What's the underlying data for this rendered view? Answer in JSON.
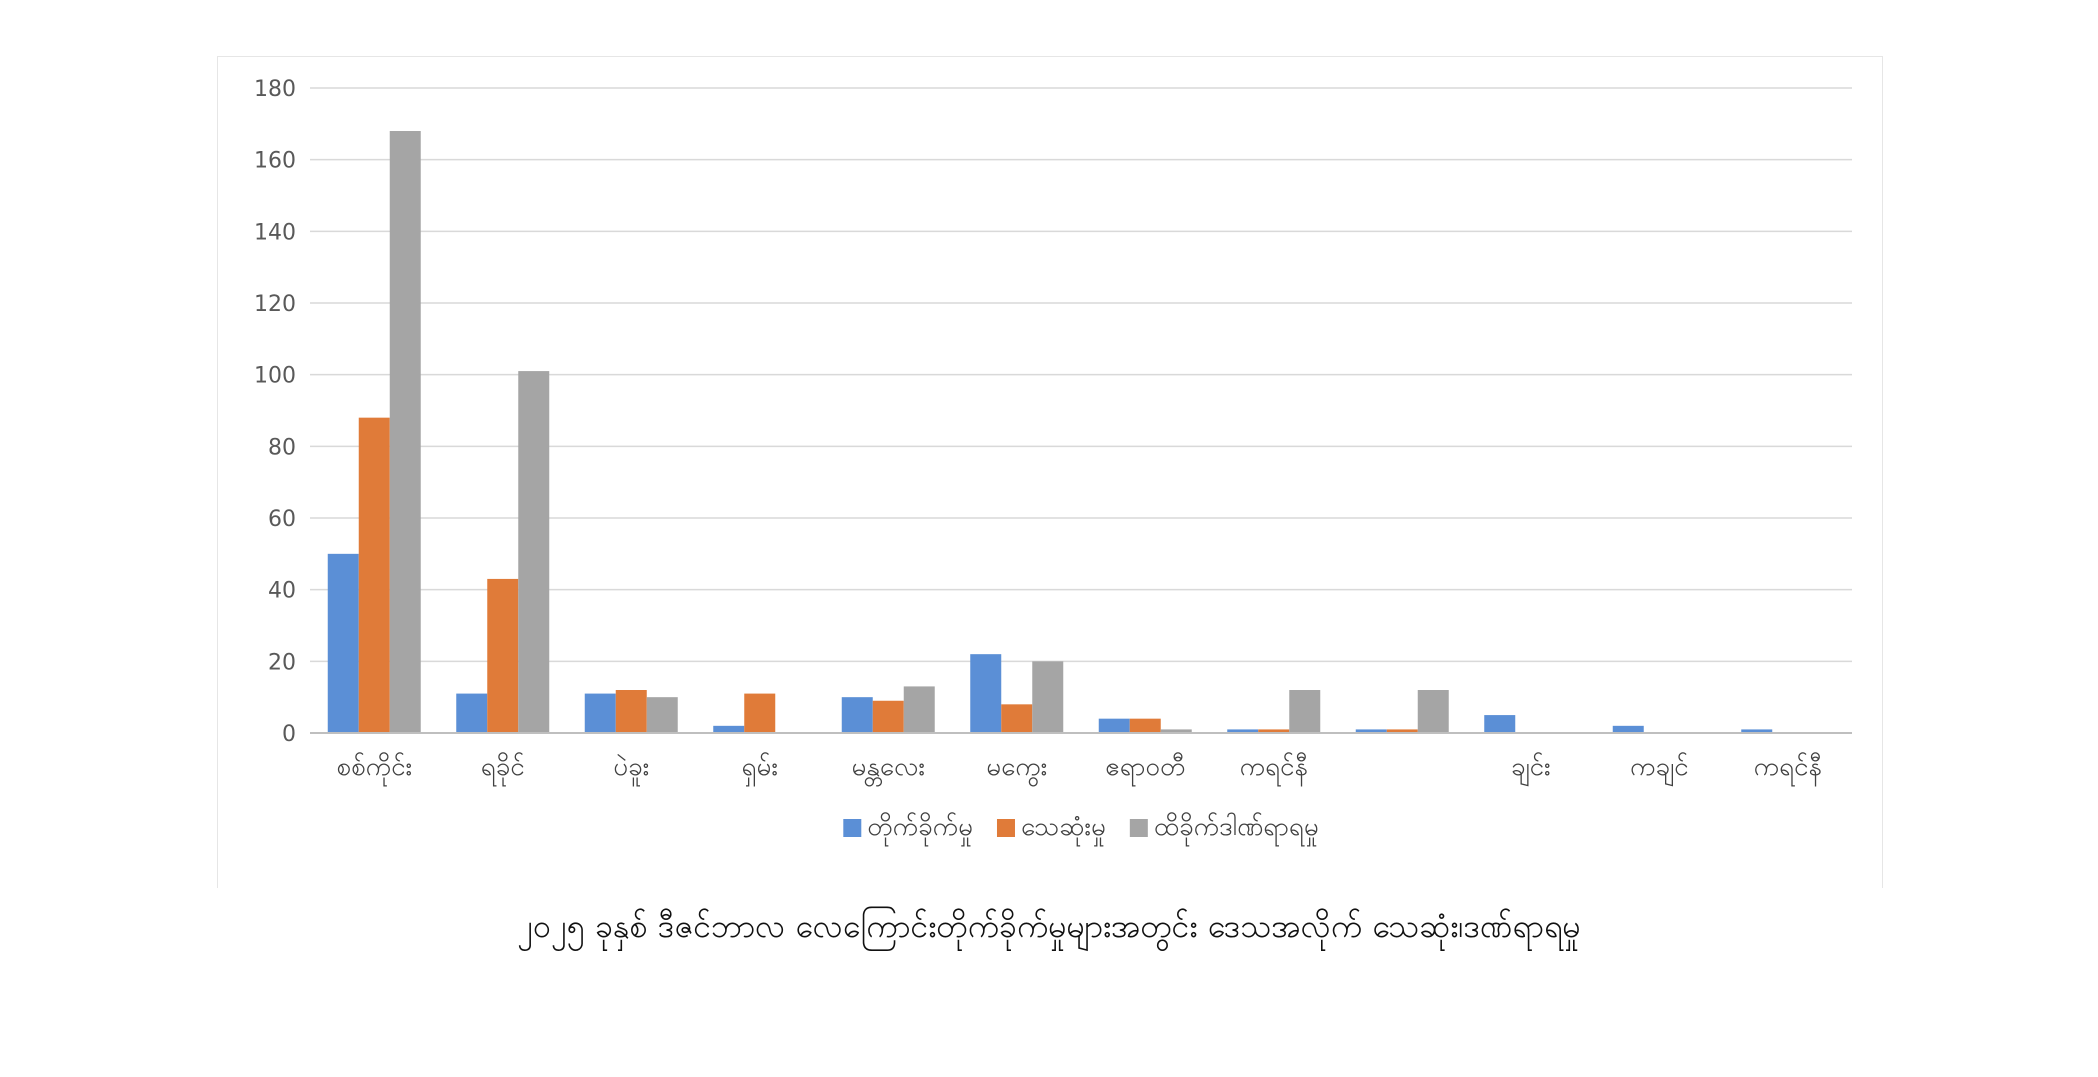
{
  "caption": "၂၀၂၅ ခုနှစ် ဒီဇင်ဘာလ လေကြောင်းတိုက်ခိုက်မှုများအတွင်း ဒေသအလိုက် သေဆုံး၊ဒဏ်ရာရမှု",
  "chart_data": {
    "type": "bar",
    "categories": [
      "စစ်ကိုင်း",
      "ရခိုင်",
      "ပဲခူး",
      "ရှမ်း",
      "မန္တလေး",
      "မကွေး",
      "ဧရာဝတီ",
      "ကရင်နီ",
      "",
      "ချင်း",
      "ကချင်",
      "ကရင်နီ"
    ],
    "series": [
      {
        "name": "တိုက်ခိုက်မှု",
        "color": "#5b8fd6",
        "values": [
          50,
          11,
          11,
          2,
          10,
          22,
          4,
          1,
          1,
          5,
          2,
          1
        ]
      },
      {
        "name": "သေဆုံးမှု",
        "color": "#e07b39",
        "values": [
          88,
          43,
          12,
          11,
          9,
          8,
          4,
          1,
          1,
          0,
          0,
          0
        ]
      },
      {
        "name": "ထိခိုက်ဒါဏ်ရာရမှု",
        "color": "#a5a5a5",
        "values": [
          168,
          101,
          10,
          0,
          13,
          20,
          1,
          12,
          12,
          0,
          0,
          0
        ]
      }
    ],
    "yticks": [
      0,
      20,
      40,
      60,
      80,
      100,
      120,
      140,
      160,
      180
    ],
    "ylim": [
      0,
      180
    ],
    "grid": true,
    "legend_position": "bottom"
  }
}
